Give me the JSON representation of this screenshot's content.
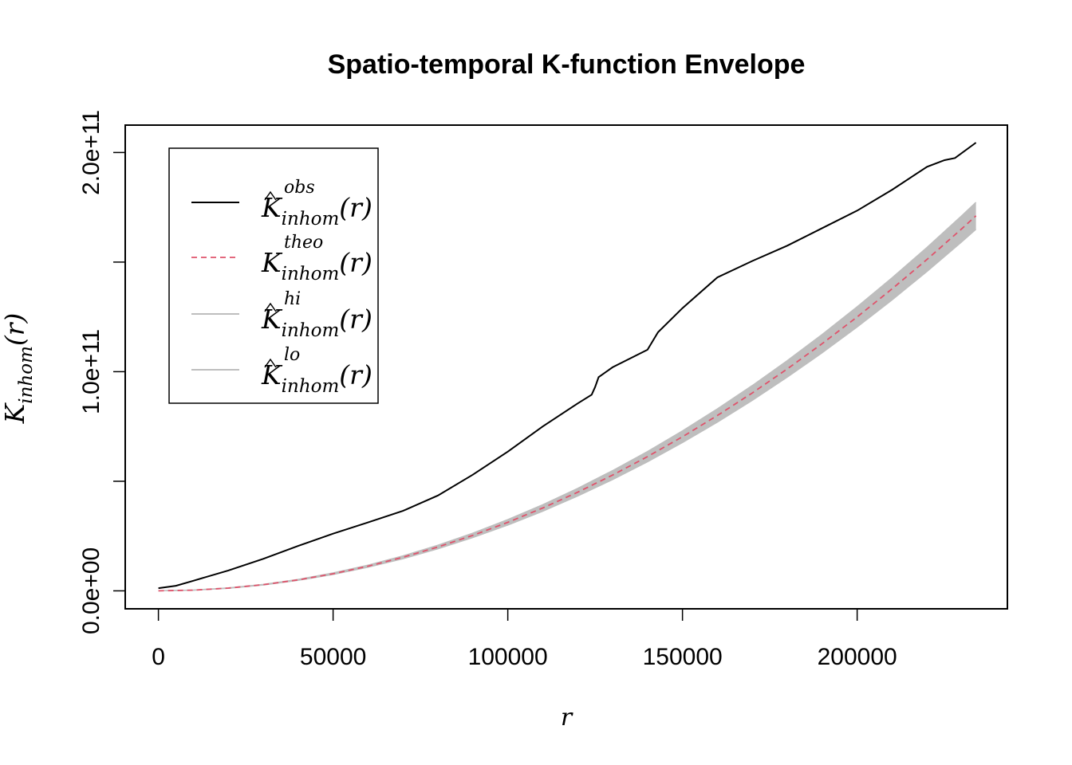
{
  "chart_data": {
    "type": "line",
    "title": "Spatio-temporal K-function Envelope",
    "xlabel": "r",
    "ylabel": {
      "base": "K",
      "sub": "inhom",
      "arg": "(r)"
    },
    "xlim": [
      -9500,
      243000
    ],
    "ylim": [
      -8200000000.0,
      212500000000.0
    ],
    "x_ticks": [
      0,
      50000,
      100000,
      150000,
      200000
    ],
    "x_tick_labels": [
      "0",
      "50000",
      "100000",
      "150000",
      "200000"
    ],
    "y_ticks": [
      0,
      50000000000.0,
      100000000000.0,
      150000000000.0,
      200000000000.0
    ],
    "y_tick_labels": [
      "0.0e+00",
      "",
      "1.0e+11",
      "",
      "2.0e+11"
    ],
    "grid": false,
    "legend_position": "top-left",
    "legend": [
      {
        "sup": "obs",
        "color": "#000000",
        "dash": "solid",
        "hat": true
      },
      {
        "sup": "theo",
        "color": "#DF536B",
        "dash": "dashed",
        "hat": false
      },
      {
        "sup": "hi",
        "color": "#BEBEBE",
        "dash": "solid",
        "hat": true
      },
      {
        "sup": "lo",
        "color": "#BEBEBE",
        "dash": "solid",
        "hat": true
      }
    ],
    "legend_base": "K",
    "legend_sub": "inhom",
    "legend_arg": "(r)",
    "envelope_color": "#BEBEBE",
    "series": [
      {
        "key": "obs",
        "color": "#000000",
        "x": [
          0,
          5000,
          10000,
          20000,
          30000,
          40000,
          50000,
          60000,
          70000,
          80000,
          90000,
          100000,
          110000,
          120000,
          124000,
          125000,
          126000,
          130000,
          140000,
          143000,
          150000,
          160000,
          170000,
          180000,
          190000,
          200000,
          210000,
          220000,
          225000,
          228000,
          234000
        ],
        "y": [
          1200000000.0,
          2300000000.0,
          4600000000.0,
          9300000000.0,
          14600000000.0,
          20500000000.0,
          26100000000.0,
          31200000000.0,
          36500000000.0,
          43500000000.0,
          53000000000.0,
          63500000000.0,
          75000000000.0,
          85500000000.0,
          89500000000.0,
          93000000000.0,
          97500000000.0,
          102000000000.0,
          110000000000.0,
          118000000000.0,
          129000000000.0,
          143000000000.0,
          150500000000.0,
          157500000000.0,
          165500000000.0,
          173500000000.0,
          183000000000.0,
          193500000000.0,
          196500000000.0,
          197500000000.0,
          204500000000.0
        ]
      },
      {
        "key": "theo",
        "color": "#DF536B",
        "x": [
          0,
          10000,
          20000,
          30000,
          40000,
          50000,
          60000,
          70000,
          80000,
          90000,
          100000,
          110000,
          120000,
          130000,
          140000,
          150000,
          160000,
          170000,
          180000,
          190000,
          200000,
          210000,
          220000,
          230000,
          234000
        ],
        "y": [
          0,
          310000000.0,
          1250000000.0,
          2810000000.0,
          5000000000.0,
          7810000000.0,
          11250000000.0,
          15310000000.0,
          20000000000.0,
          25310000000.0,
          31250000000.0,
          37810000000.0,
          45000000000.0,
          52810000000.0,
          61250000000.0,
          70310000000.0,
          80000000000.0,
          90310000000.0,
          101250000000.0,
          112810000000.0,
          125000000000.0,
          137810000000.0,
          151250000000.0,
          165310000000.0,
          171130000000.0
        ]
      },
      {
        "key": "hi",
        "color": "#BEBEBE",
        "x": [
          0,
          10000,
          20000,
          30000,
          40000,
          50000,
          60000,
          70000,
          80000,
          90000,
          100000,
          110000,
          120000,
          130000,
          140000,
          150000,
          160000,
          170000,
          180000,
          190000,
          200000,
          210000,
          220000,
          230000,
          234000
        ],
        "y": [
          0,
          330000000.0,
          1310000000.0,
          2940000000.0,
          5230000000.0,
          8150000000.0,
          11720000000.0,
          15940000000.0,
          20810000000.0,
          26310000000.0,
          32470000000.0,
          39280000000.0,
          46730000000.0,
          54830000000.0,
          63580000000.0,
          72970000000.0,
          83010000000.0,
          93690000000.0,
          105010000000.0,
          116980000000.0,
          129590000000.0,
          142840000000.0,
          156730000000.0,
          171260000000.0,
          177280000000.0
        ]
      },
      {
        "key": "lo",
        "color": "#BEBEBE",
        "x": [
          0,
          10000,
          20000,
          30000,
          40000,
          50000,
          60000,
          70000,
          80000,
          90000,
          100000,
          110000,
          120000,
          130000,
          140000,
          150000,
          160000,
          170000,
          180000,
          190000,
          200000,
          210000,
          220000,
          230000,
          234000
        ],
        "y": [
          0,
          290000000.0,
          1190000000.0,
          2680000000.0,
          4770000000.0,
          7470000000.0,
          10780000000.0,
          14680000000.0,
          19190000000.0,
          24310000000.0,
          30030000000.0,
          36340000000.0,
          43270000000.0,
          50790000000.0,
          58920000000.0,
          67650000000.0,
          76990000000.0,
          86930000000.0,
          97490000000.0,
          108640000000.0,
          120410000000.0,
          132780000000.0,
          145770000000.0,
          159360000000.0,
          164980000000.0
        ]
      }
    ]
  }
}
